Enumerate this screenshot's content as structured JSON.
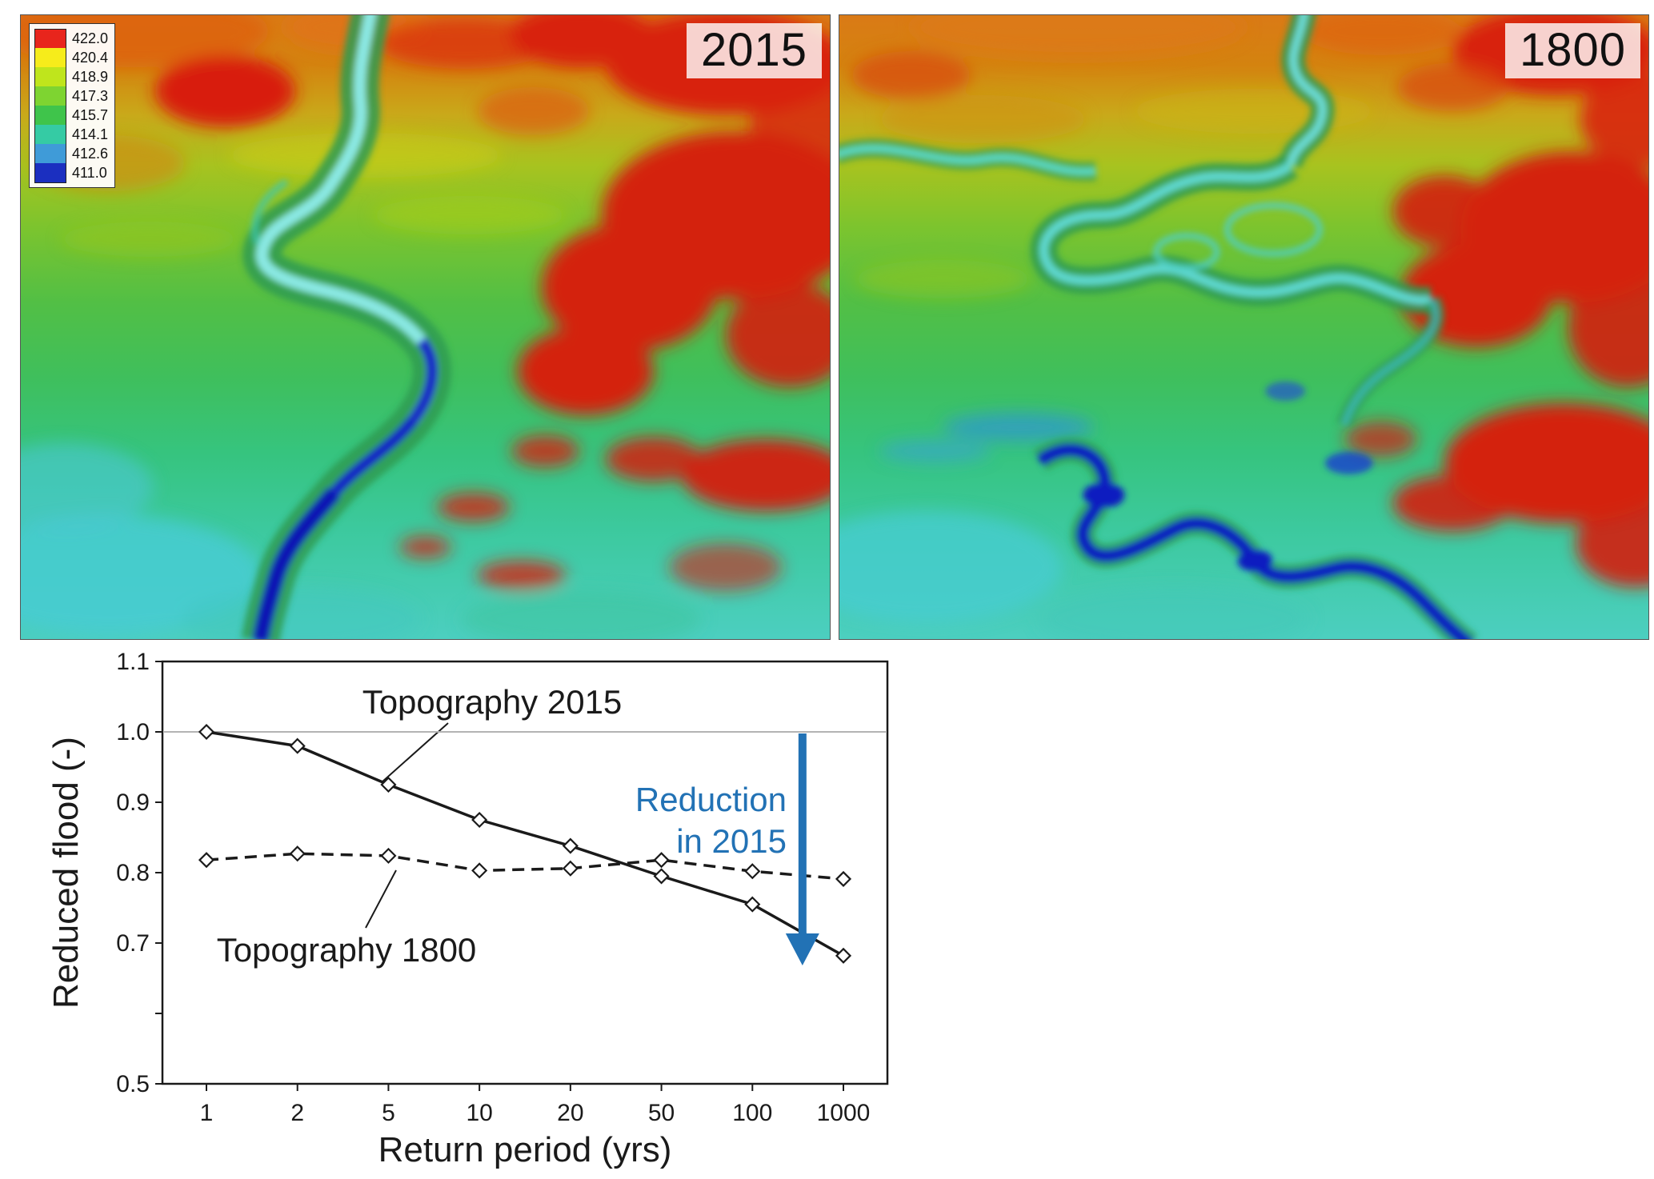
{
  "figure": {
    "panels": [
      {
        "year_label": "2015"
      },
      {
        "year_label": "1800"
      }
    ],
    "legend": {
      "entries": [
        {
          "value": "422.0",
          "color": "#e8251c"
        },
        {
          "value": "420.4",
          "color": "#f6ec1b"
        },
        {
          "value": "418.9",
          "color": "#bfe51c"
        },
        {
          "value": "417.3",
          "color": "#7ed431"
        },
        {
          "value": "415.7",
          "color": "#3fc44b"
        },
        {
          "value": "414.1",
          "color": "#35cba4"
        },
        {
          "value": "412.6",
          "color": "#3f9bd8"
        },
        {
          "value": "411.0",
          "color": "#1b2fc0"
        }
      ]
    }
  },
  "chart_data": {
    "type": "line",
    "title": "",
    "xlabel": "Return period (yrs)",
    "ylabel": "Reduced flood (-)",
    "x_scale": "log-category",
    "categories": [
      "1",
      "2",
      "5",
      "10",
      "20",
      "50",
      "100",
      "1000"
    ],
    "ylim": [
      0.5,
      1.1
    ],
    "y_ticks": [
      0.5,
      0.7,
      0.8,
      0.9,
      1.0,
      1.1
    ],
    "reference_line_y": 1.0,
    "grid": false,
    "legend_position": "inline-labels",
    "series": [
      {
        "name": "Topography 2015",
        "line_style": "solid",
        "marker": "diamond",
        "color": "#1a1a1a",
        "values": [
          1.0,
          0.98,
          0.925,
          0.875,
          0.838,
          0.795,
          0.755,
          0.682
        ]
      },
      {
        "name": "Topography 1800",
        "line_style": "dashed",
        "marker": "diamond",
        "color": "#1a1a1a",
        "values": [
          0.818,
          0.827,
          0.824,
          0.803,
          0.806,
          0.818,
          0.802,
          0.791
        ]
      }
    ],
    "annotation": {
      "line1": "Reduction",
      "line2": "in 2015",
      "color": "#2272b5",
      "arrow": {
        "x_category_position": 6.55,
        "y_from": 1.0,
        "y_to": 0.675
      }
    }
  }
}
